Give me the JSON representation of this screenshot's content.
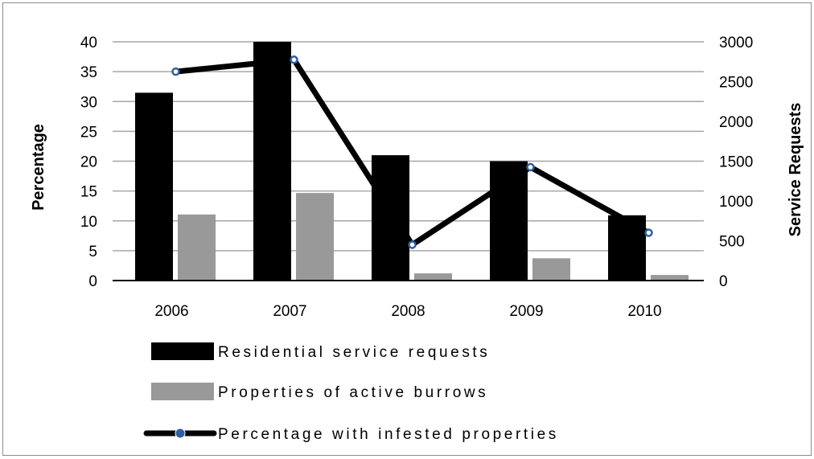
{
  "chart_data": {
    "type": "bar",
    "categories": [
      "2006",
      "2007",
      "2008",
      "2009",
      "2010"
    ],
    "series": [
      {
        "name": "Residential service requests",
        "kind": "bar",
        "axis": "right",
        "color": "#000000",
        "values": [
          2360,
          3000,
          1575,
          1500,
          820
        ]
      },
      {
        "name": "Properties of active burrows",
        "kind": "bar",
        "axis": "right",
        "color": "#999999",
        "values": [
          830,
          1100,
          90,
          280,
          70
        ]
      },
      {
        "name": "Percentage with infested properties",
        "kind": "line",
        "axis": "left",
        "line_color": "#000000",
        "marker_color": "#2e5fa3",
        "values": [
          35,
          37,
          6,
          19,
          8
        ]
      }
    ],
    "ylabel": "Percentage",
    "y2label": "Service Requests",
    "ylim": [
      0,
      40
    ],
    "y2lim": [
      0,
      3000
    ],
    "yticks": [
      "0",
      "5",
      "10",
      "15",
      "20",
      "25",
      "30",
      "35",
      "40"
    ],
    "y2ticks": [
      "0",
      "500",
      "1000",
      "1500",
      "2000",
      "2500",
      "3000"
    ],
    "grid": true,
    "legend_position": "bottom"
  }
}
